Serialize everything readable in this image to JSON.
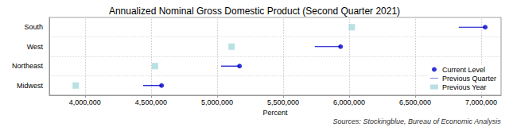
{
  "chart_data": {
    "type": "dot",
    "orientation": "horizontal",
    "title": "Annualized Nominal Gross Domestic Product (Second Quarter 2021)",
    "x_label": "Percent",
    "annotation": "Sources: Stockingblue, Bureau of Economic Analysis",
    "categories": [
      "South",
      "West",
      "Northeast",
      "Midwest"
    ],
    "series": [
      {
        "name": "Current Level",
        "type": "scatter",
        "marker": "circle",
        "color": "#0000cc",
        "values": [
          7030000,
          5935000,
          5170000,
          4580000
        ]
      },
      {
        "name": "Previous Quarter",
        "type": "line",
        "color": "#0000cc",
        "values": [
          6830000,
          5740000,
          5030000,
          4440000
        ]
      },
      {
        "name": "Previous Year",
        "type": "scatter",
        "marker": "square",
        "color": "#a8d8dc",
        "values": [
          6020000,
          5110000,
          4530000,
          3930000
        ]
      }
    ],
    "xlim": [
      3730000,
      7150000
    ],
    "xticks": [
      {
        "value": 4000000,
        "label": "4,000,000"
      },
      {
        "value": 4500000,
        "label": "4,500,000"
      },
      {
        "value": 5000000,
        "label": "5,000,000"
      },
      {
        "value": 5500000,
        "label": "5,500,000"
      },
      {
        "value": 6000000,
        "label": "6,000,000"
      },
      {
        "value": 6500000,
        "label": "6,500,000"
      },
      {
        "value": 7000000,
        "label": "7,000,000"
      }
    ],
    "grid": true,
    "legend": "bottom-right"
  }
}
